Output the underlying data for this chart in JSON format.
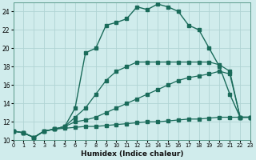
{
  "xlabel": "Humidex (Indice chaleur)",
  "bg_color": "#d0ecec",
  "line_color": "#1a6b5a",
  "grid_color": "#b0d4d4",
  "xlim": [
    0,
    23
  ],
  "ylim": [
    10,
    25
  ],
  "xticks": [
    0,
    1,
    2,
    3,
    4,
    5,
    6,
    7,
    8,
    9,
    10,
    11,
    12,
    13,
    14,
    15,
    16,
    17,
    18,
    19,
    20,
    21,
    22,
    23
  ],
  "yticks": [
    10,
    12,
    14,
    16,
    18,
    20,
    22,
    24
  ],
  "series": [
    {
      "x": [
        0,
        1,
        2,
        3,
        4,
        5,
        6,
        7,
        8,
        9,
        10,
        11,
        12,
        13,
        14,
        15,
        16,
        17,
        18,
        19,
        20,
        21,
        22,
        23
      ],
      "y": [
        11.0,
        10.8,
        10.3,
        11.0,
        11.2,
        11.3,
        11.4,
        11.5,
        11.5,
        11.6,
        11.7,
        11.8,
        11.9,
        12.0,
        12.0,
        12.1,
        12.2,
        12.3,
        12.3,
        12.4,
        12.5,
        12.5,
        12.5,
        12.5
      ],
      "lw": 0.9,
      "ms": 2.2
    },
    {
      "x": [
        0,
        1,
        2,
        3,
        4,
        5,
        6,
        7,
        8,
        9,
        10,
        11,
        12,
        13,
        14,
        15,
        16,
        17,
        18,
        19,
        20,
        21,
        22,
        23
      ],
      "y": [
        11.0,
        10.8,
        10.3,
        11.0,
        11.2,
        11.5,
        12.0,
        12.2,
        12.5,
        13.0,
        13.5,
        14.0,
        14.5,
        15.0,
        15.5,
        16.0,
        16.5,
        16.8,
        17.0,
        17.2,
        17.5,
        17.2,
        12.5,
        12.5
      ],
      "lw": 0.9,
      "ms": 2.2
    },
    {
      "x": [
        0,
        1,
        2,
        3,
        4,
        5,
        6,
        7,
        8,
        9,
        10,
        11,
        12,
        13,
        14,
        15,
        16,
        17,
        18,
        19,
        20,
        21,
        22,
        23
      ],
      "y": [
        11.0,
        10.8,
        10.3,
        11.0,
        11.2,
        11.5,
        12.5,
        13.5,
        15.0,
        16.5,
        17.5,
        18.0,
        18.5,
        18.5,
        18.5,
        18.5,
        18.5,
        18.5,
        18.5,
        18.5,
        18.2,
        17.5,
        12.5,
        12.5
      ],
      "lw": 0.9,
      "ms": 2.2
    },
    {
      "x": [
        0,
        1,
        2,
        3,
        4,
        5,
        6,
        7,
        8,
        9,
        10,
        11,
        12,
        13,
        14,
        15,
        16,
        17,
        18,
        19,
        20,
        21,
        22,
        23
      ],
      "y": [
        11.0,
        10.8,
        10.3,
        11.0,
        11.2,
        11.5,
        13.5,
        19.5,
        20.0,
        22.5,
        22.8,
        23.2,
        24.5,
        24.2,
        24.8,
        24.5,
        24.0,
        22.5,
        22.0,
        20.0,
        18.0,
        15.0,
        12.5,
        12.5
      ],
      "lw": 1.0,
      "ms": 2.5
    }
  ]
}
